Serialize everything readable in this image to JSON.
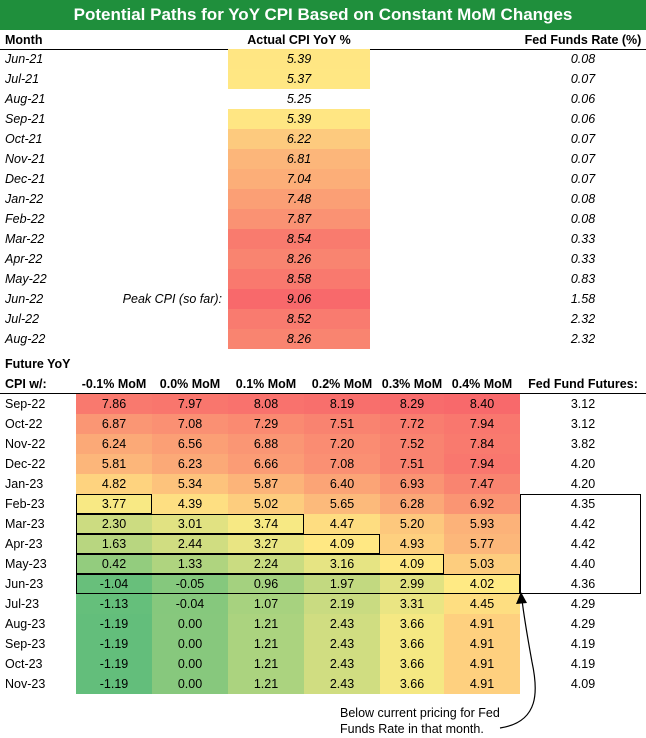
{
  "title": "Potential Paths for YoY CPI Based on Constant MoM Changes",
  "headers": {
    "month": "Month",
    "actual": "Actual CPI YoY %",
    "ffr": "Fed Funds Rate (%)"
  },
  "peak_label": "Peak CPI (so far):",
  "future_header": {
    "line1": "Future YoY",
    "line2": "CPI w/:",
    "columns": [
      "-0.1% MoM",
      "0.0% MoM",
      "0.1% MoM",
      "0.2% MoM",
      "0.3% MoM",
      "0.4% MoM"
    ],
    "futures": "Fed Fund Futures:"
  },
  "annotation": "Below current pricing for Fed Funds Rate in that month.",
  "chart_data": [
    {
      "type": "table",
      "title": "Potential Paths for YoY CPI Based on Constant MoM Changes",
      "columns": [
        "Month",
        "Actual CPI YoY %",
        "Fed Funds Rate (%)"
      ],
      "rows": [
        {
          "month": "Jun-21",
          "cpi": "5.39",
          "ffr": "0.08"
        },
        {
          "month": "Jul-21",
          "cpi": "5.37",
          "ffr": "0.07"
        },
        {
          "month": "Aug-21",
          "cpi": "5.25",
          "ffr": "0.06"
        },
        {
          "month": "Sep-21",
          "cpi": "5.39",
          "ffr": "0.06"
        },
        {
          "month": "Oct-21",
          "cpi": "6.22",
          "ffr": "0.07"
        },
        {
          "month": "Nov-21",
          "cpi": "6.81",
          "ffr": "0.07"
        },
        {
          "month": "Dec-21",
          "cpi": "7.04",
          "ffr": "0.07"
        },
        {
          "month": "Jan-22",
          "cpi": "7.48",
          "ffr": "0.08"
        },
        {
          "month": "Feb-22",
          "cpi": "7.87",
          "ffr": "0.08"
        },
        {
          "month": "Mar-22",
          "cpi": "8.54",
          "ffr": "0.33"
        },
        {
          "month": "Apr-22",
          "cpi": "8.26",
          "ffr": "0.33"
        },
        {
          "month": "May-22",
          "cpi": "8.58",
          "ffr": "0.83"
        },
        {
          "month": "Jun-22",
          "cpi": "9.06",
          "ffr": "1.58"
        },
        {
          "month": "Jul-22",
          "cpi": "8.52",
          "ffr": "2.32"
        },
        {
          "month": "Aug-22",
          "cpi": "8.26",
          "ffr": "2.32"
        }
      ],
      "peak_month": "Jun-22"
    },
    {
      "type": "heatmap",
      "columns": [
        "-0.1% MoM",
        "0.0% MoM",
        "0.1% MoM",
        "0.2% MoM",
        "0.3% MoM",
        "0.4% MoM"
      ],
      "futures_label": "Fed Fund Futures:",
      "rows": [
        {
          "month": "Sep-22",
          "values": [
            "7.86",
            "7.97",
            "8.08",
            "8.19",
            "8.29",
            "8.40"
          ],
          "futures": "3.12"
        },
        {
          "month": "Oct-22",
          "values": [
            "6.87",
            "7.08",
            "7.29",
            "7.51",
            "7.72",
            "7.94"
          ],
          "futures": "3.12"
        },
        {
          "month": "Nov-22",
          "values": [
            "6.24",
            "6.56",
            "6.88",
            "7.20",
            "7.52",
            "7.84"
          ],
          "futures": "3.82"
        },
        {
          "month": "Dec-22",
          "values": [
            "5.81",
            "6.23",
            "6.66",
            "7.08",
            "7.51",
            "7.94"
          ],
          "futures": "4.20"
        },
        {
          "month": "Jan-23",
          "values": [
            "4.82",
            "5.34",
            "5.87",
            "6.40",
            "6.93",
            "7.47"
          ],
          "futures": "4.20"
        },
        {
          "month": "Feb-23",
          "values": [
            "3.77",
            "4.39",
            "5.02",
            "5.65",
            "6.28",
            "6.92"
          ],
          "futures": "4.35"
        },
        {
          "month": "Mar-23",
          "values": [
            "2.30",
            "3.01",
            "3.74",
            "4.47",
            "5.20",
            "5.93"
          ],
          "futures": "4.42"
        },
        {
          "month": "Apr-23",
          "values": [
            "1.63",
            "2.44",
            "3.27",
            "4.09",
            "4.93",
            "5.77"
          ],
          "futures": "4.42"
        },
        {
          "month": "May-23",
          "values": [
            "0.42",
            "1.33",
            "2.24",
            "3.16",
            "4.09",
            "5.03"
          ],
          "futures": "4.40"
        },
        {
          "month": "Jun-23",
          "values": [
            "-1.04",
            "-0.05",
            "0.96",
            "1.97",
            "2.99",
            "4.02"
          ],
          "futures": "4.36"
        },
        {
          "month": "Jul-23",
          "values": [
            "-1.13",
            "-0.04",
            "1.07",
            "2.19",
            "3.31",
            "4.45"
          ],
          "futures": "4.29"
        },
        {
          "month": "Aug-23",
          "values": [
            "-1.19",
            "0.00",
            "1.21",
            "2.43",
            "3.66",
            "4.91"
          ],
          "futures": "4.29"
        },
        {
          "month": "Sep-23",
          "values": [
            "-1.19",
            "0.00",
            "1.21",
            "2.43",
            "3.66",
            "4.91"
          ],
          "futures": "4.19"
        },
        {
          "month": "Oct-23",
          "values": [
            "-1.19",
            "0.00",
            "1.21",
            "2.43",
            "3.66",
            "4.91"
          ],
          "futures": "4.19"
        },
        {
          "month": "Nov-23",
          "values": [
            "-1.19",
            "0.00",
            "1.21",
            "2.43",
            "3.66",
            "4.91"
          ],
          "futures": "4.09"
        }
      ],
      "boxed_cells": {
        "Feb-23": 1,
        "Mar-23": 3,
        "Apr-23": 4,
        "May-23": 5,
        "Jun-23": 6
      },
      "colors": {
        "low": "#63be7b",
        "mid": "#ffeb84",
        "high": "#f8696b"
      }
    }
  ]
}
